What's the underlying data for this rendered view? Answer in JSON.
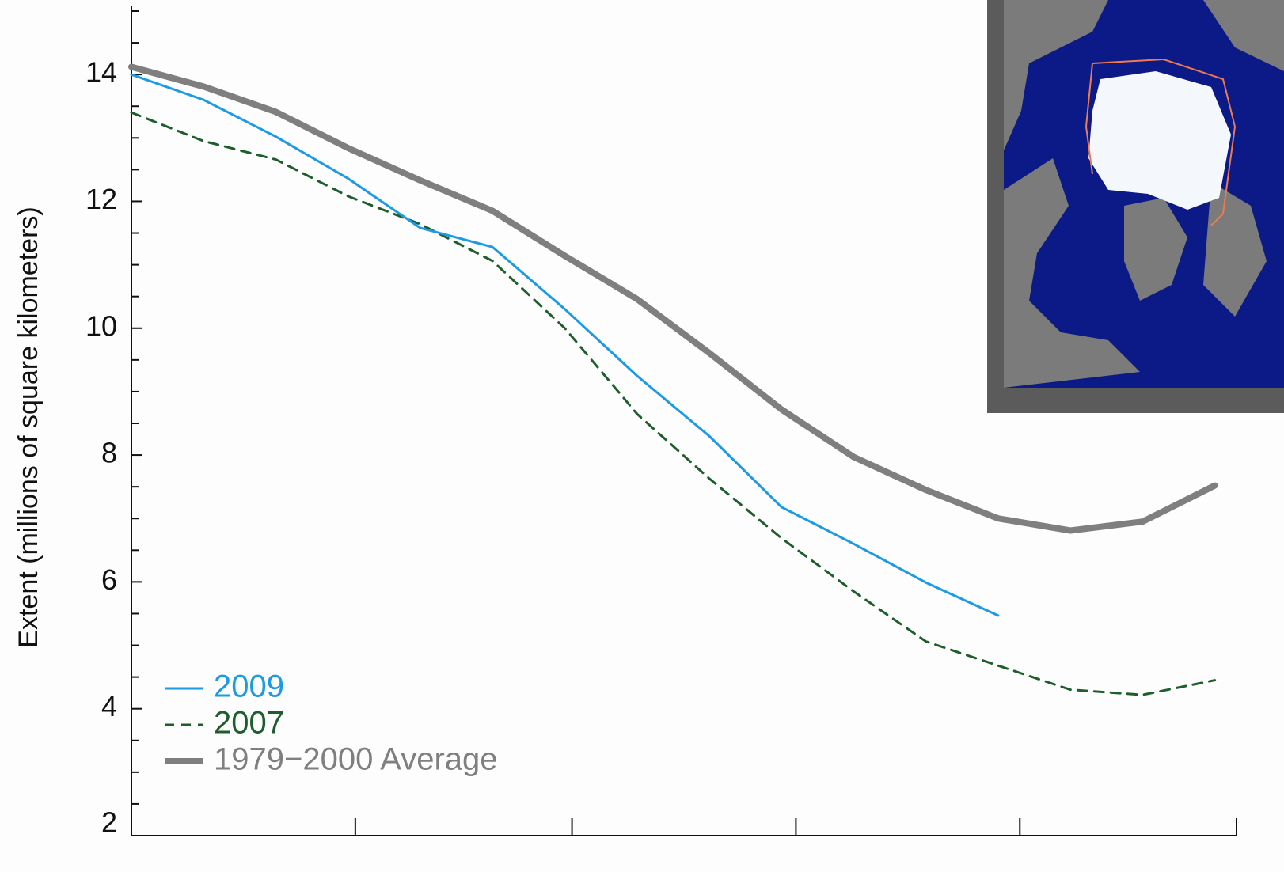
{
  "chart_data": {
    "type": "line",
    "y_label": "Extent (millions of square kilometers)",
    "x": [
      0,
      10,
      20,
      30,
      40,
      50,
      60,
      70,
      80,
      90,
      100,
      110,
      120,
      130,
      140,
      150
    ],
    "series": [
      {
        "name": "2009",
        "color": "#1b9ae6",
        "dash": false,
        "width": 3,
        "values": [
          14.0,
          13.6,
          13.02,
          12.36,
          11.58,
          11.28,
          10.3,
          9.25,
          8.3,
          7.18,
          6.6,
          5.99,
          5.47,
          null,
          null,
          null
        ]
      },
      {
        "name": "2007",
        "color": "#1d5e2c",
        "dash": true,
        "width": 3,
        "values": [
          13.4,
          12.95,
          12.66,
          12.08,
          11.64,
          11.06,
          10.0,
          8.65,
          7.63,
          6.69,
          5.85,
          5.06,
          4.68,
          4.3,
          4.22,
          4.45
        ]
      },
      {
        "name": "1979−2000 Average",
        "color": "#7f7f7f",
        "dash": false,
        "width": 8,
        "values": [
          14.12,
          13.81,
          13.41,
          12.84,
          12.33,
          11.85,
          11.14,
          10.46,
          9.61,
          8.72,
          7.97,
          7.45,
          7.0,
          6.81,
          6.95,
          7.52
        ]
      }
    ],
    "xlim": [
      0,
      153
    ],
    "xticks": [
      31,
      61,
      92,
      123,
      153
    ],
    "ylim": [
      2,
      15
    ],
    "yticks": [
      2,
      4,
      6,
      8,
      10,
      12,
      14
    ],
    "yminorticks": [
      2.5,
      3,
      3.5,
      4.5,
      5,
      5.5,
      6.5,
      7,
      7.5,
      8.5,
      9,
      9.5,
      10.5,
      11,
      11.5,
      12.5,
      13,
      13.5,
      14.5,
      15
    ],
    "legend": "lower left"
  }
}
